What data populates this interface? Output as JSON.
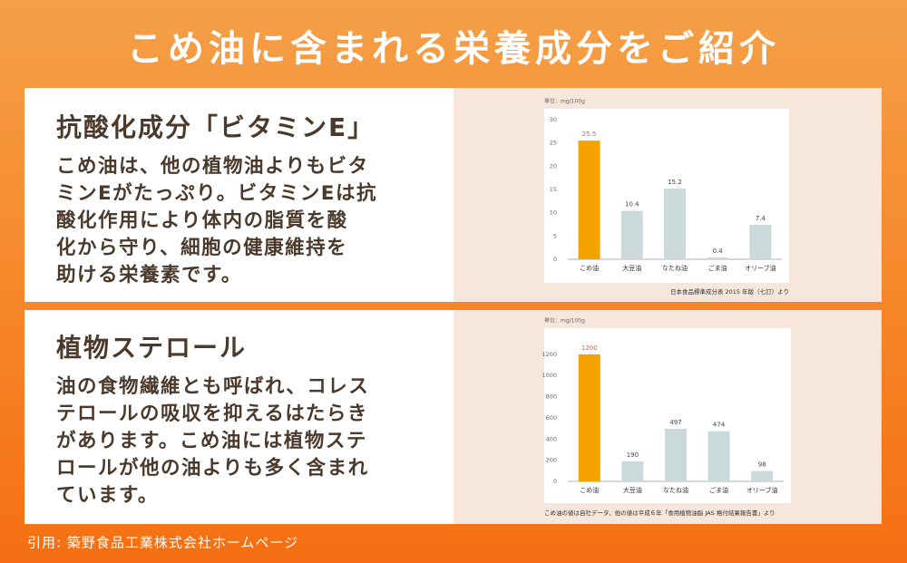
{
  "header": {
    "title": "こめ油に含まれる栄養成分をご紹介"
  },
  "sections": [
    {
      "heading": "抗酸化成分「ビタミンE」",
      "body": [
        "こめ油は、他の植物油よりもビタ",
        "ミンEがたっぷり。ビタミンEは抗",
        "酸化作用により体内の脂質を酸",
        "化から守り、細胞の健康維持を",
        "助ける栄養素です。"
      ]
    },
    {
      "heading": "植物ステロール",
      "body": [
        "油の食物繊維とも呼ばれ、コレス",
        "テロールの吸収を抑えるはたらき",
        "があります。こめ油には植物ステ",
        "ロールが他の油よりも多く含まれ",
        "ています。"
      ]
    }
  ],
  "chart_data": [
    {
      "type": "bar",
      "unit": "単位：mg/100g",
      "categories": [
        "こめ油",
        "大豆油",
        "なたね油",
        "ごま油",
        "オリーブ油"
      ],
      "values": [
        25.5,
        10.4,
        15.2,
        0.4,
        7.4
      ],
      "colors": [
        "#f5a300",
        "#cbd9db",
        "#cbd9db",
        "#cbd9db",
        "#cbd9db"
      ],
      "highlight_label_color": "#e8584c",
      "ylim": [
        0,
        30
      ],
      "yticks": [
        0,
        5,
        10,
        15,
        20,
        25,
        30
      ],
      "source": "日本食品標準成分表 2015 年版（七訂）より"
    },
    {
      "type": "bar",
      "unit": "単位：mg/100g",
      "categories": [
        "こめ油",
        "大豆油",
        "なたね油",
        "ごま油",
        "オリーブ油"
      ],
      "values": [
        1200,
        190,
        497,
        474,
        98
      ],
      "colors": [
        "#f5a300",
        "#cbd9db",
        "#cbd9db",
        "#cbd9db",
        "#cbd9db"
      ],
      "highlight_label_color": "#e8584c",
      "ylim": [
        0,
        1250
      ],
      "yticks": [
        0,
        200,
        400,
        600,
        800,
        1000,
        1200
      ],
      "source": "こめ油の値は自社データ、他の値は平成６年「食用植物油脂 JAS 格付結果報告書」より"
    }
  ],
  "footer": {
    "citation": "引用: 築野食品工業株式会社ホームページ"
  }
}
